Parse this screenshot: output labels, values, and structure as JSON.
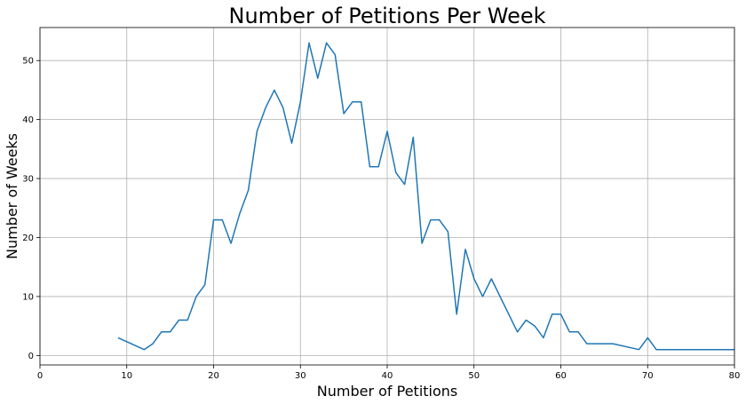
{
  "chart_data": {
    "type": "line",
    "title": "Number of Petitions Per Week",
    "xlabel": "Number of Petitions",
    "ylabel": "Number of Weeks",
    "xlim": [
      0,
      80
    ],
    "ylim": [
      -1.6,
      55.6
    ],
    "xticks": [
      0,
      10,
      20,
      30,
      40,
      50,
      60,
      70,
      80
    ],
    "yticks": [
      0,
      10,
      20,
      30,
      40,
      50
    ],
    "grid": true,
    "line_color": "#1f77b4",
    "series": [
      {
        "x": [
          9,
          12,
          13,
          14,
          15,
          16,
          17,
          18,
          19,
          20,
          21,
          22,
          23,
          24,
          25,
          26,
          27,
          28,
          29,
          30,
          31,
          32,
          33,
          34,
          35,
          36,
          37,
          38,
          39,
          40,
          41,
          42,
          43,
          44,
          45,
          46,
          47,
          48,
          49,
          50,
          51,
          52,
          55,
          56,
          57,
          58,
          59,
          60,
          61,
          62,
          63,
          66,
          69,
          70,
          71,
          80
        ],
        "y": [
          3,
          1,
          2,
          4,
          4,
          6,
          6,
          10,
          12,
          23,
          23,
          19,
          24,
          28,
          38,
          42,
          45,
          42,
          36,
          43,
          53,
          47,
          53,
          51,
          41,
          43,
          43,
          32,
          32,
          38,
          31,
          29,
          37,
          19,
          23,
          23,
          21,
          7,
          18,
          13,
          10,
          13,
          4,
          6,
          5,
          3,
          7,
          7,
          4,
          4,
          2,
          2,
          1,
          3,
          1,
          1
        ]
      }
    ]
  }
}
